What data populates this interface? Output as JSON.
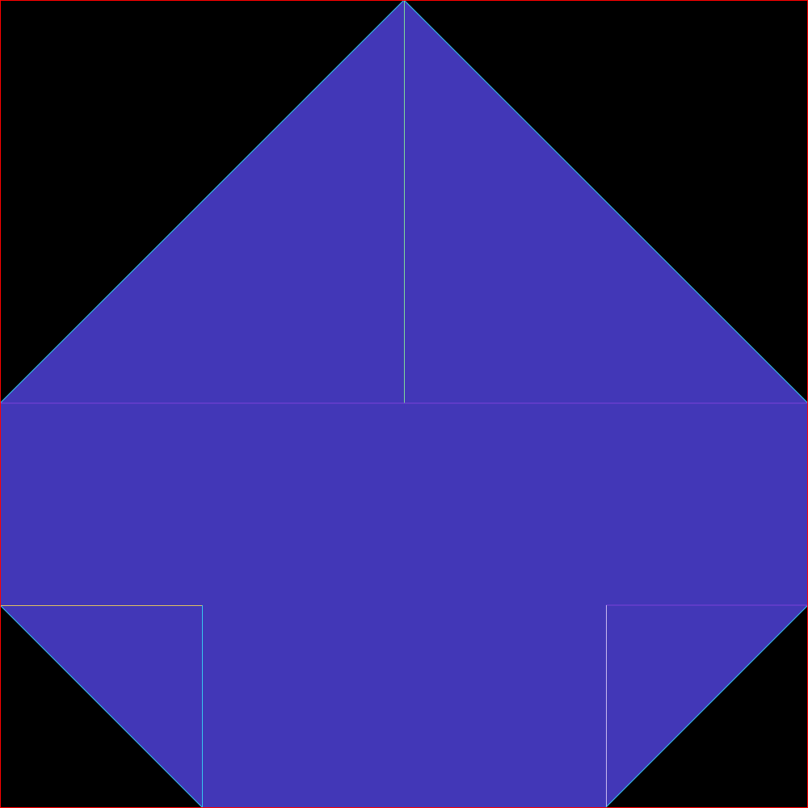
{
  "colors": {
    "background": "#000000",
    "frame": "#ff0000",
    "fill": "#4237b7",
    "edge_cyan": "#36c6f0",
    "edge_green": "#7ed99a",
    "edge_yellow": "#e0c060",
    "edge_magenta": "#c050d0",
    "edge_purple": "#7a40d8"
  },
  "pieces": [
    {
      "name": "top-left-triangle",
      "color_key": "fill"
    },
    {
      "name": "top-right-triangle",
      "color_key": "fill"
    },
    {
      "name": "middle-rectangle",
      "color_key": "fill"
    },
    {
      "name": "bottom-left-triangle",
      "color_key": "fill"
    },
    {
      "name": "bottom-center-rectangle",
      "color_key": "fill"
    },
    {
      "name": "bottom-right-triangle",
      "color_key": "fill"
    }
  ]
}
